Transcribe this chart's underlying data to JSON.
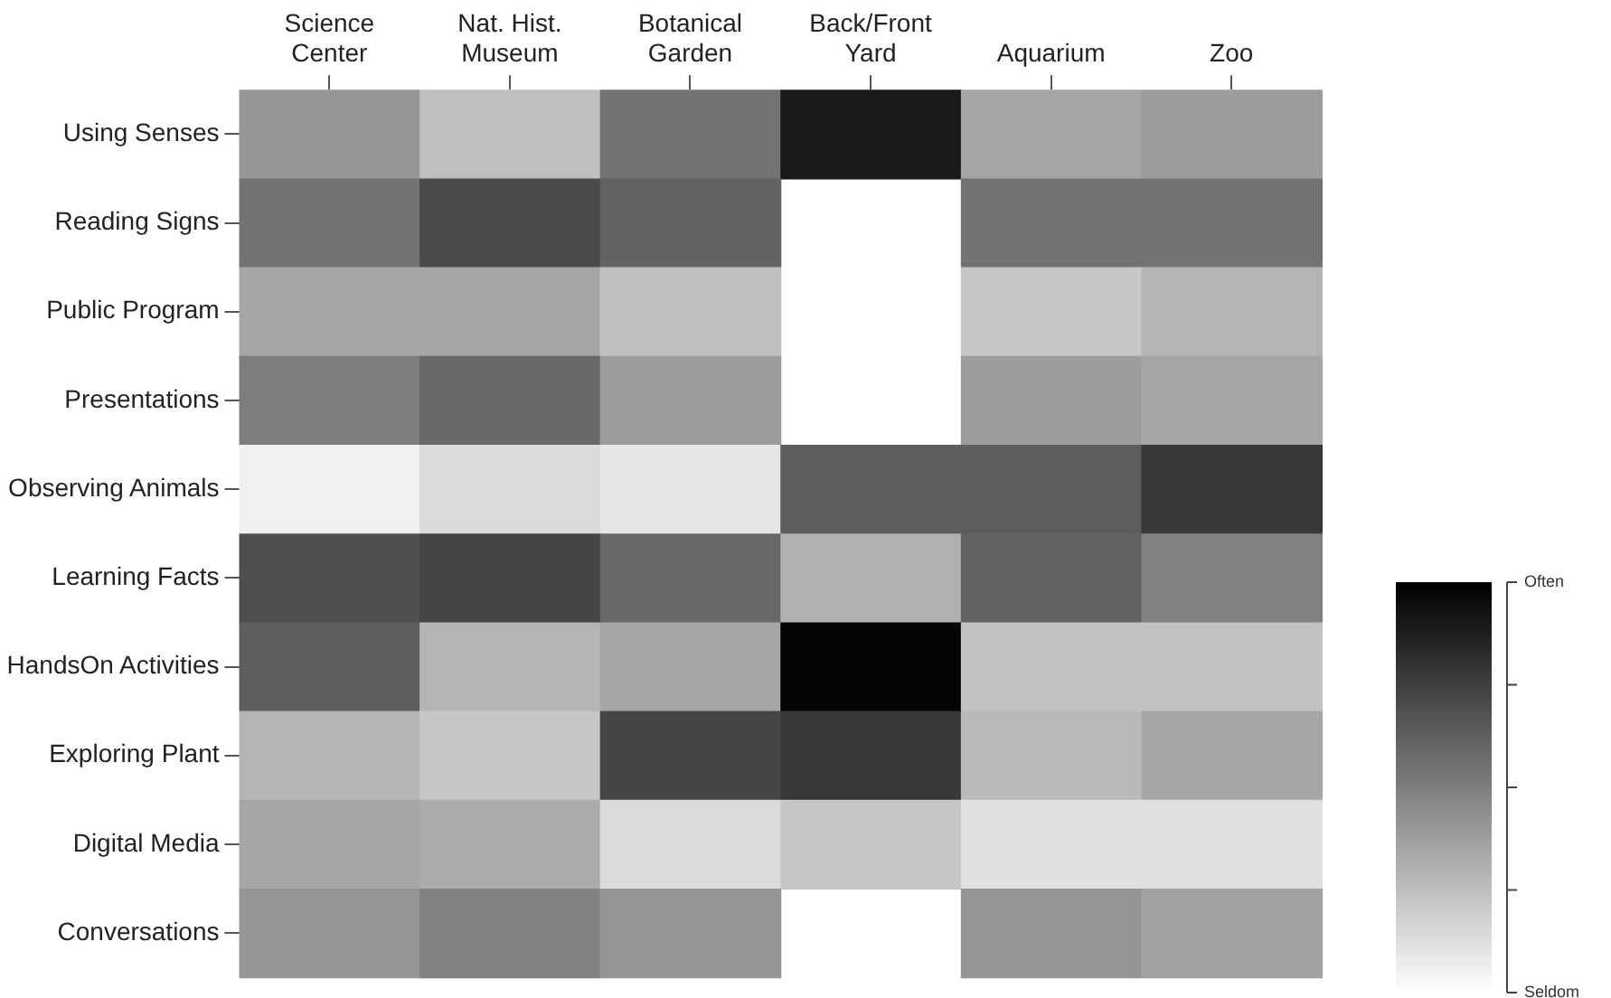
{
  "chart_data": {
    "type": "heatmap",
    "categories": [
      "Science Center",
      "Nat. Hist. Museum",
      "Botanical Garden",
      "Back/Front Yard",
      "Aquarium",
      "Zoo"
    ],
    "y_categories": [
      "Using Senses",
      "Reading Signs",
      "Public Program",
      "Presentations",
      "Observing Animals",
      "Learning Facts",
      "HandsOn Activities",
      "Exploring Plant",
      "Digital Media",
      "Conversations"
    ],
    "cells": [
      [
        0.41,
        0.25,
        0.55,
        0.9,
        0.35,
        0.39
      ],
      [
        0.55,
        0.71,
        0.61,
        null,
        0.55,
        0.55
      ],
      [
        0.35,
        0.35,
        0.25,
        null,
        0.22,
        0.29
      ],
      [
        0.51,
        0.59,
        0.39,
        null,
        0.39,
        0.35
      ],
      [
        0.06,
        0.14,
        0.1,
        0.63,
        0.63,
        0.78
      ],
      [
        0.69,
        0.73,
        0.59,
        0.31,
        0.61,
        0.49
      ],
      [
        0.63,
        0.29,
        0.35,
        0.98,
        0.24,
        0.24
      ],
      [
        0.29,
        0.22,
        0.73,
        0.78,
        0.27,
        0.35
      ],
      [
        0.35,
        0.33,
        0.14,
        0.22,
        0.12,
        0.12
      ],
      [
        0.41,
        0.49,
        0.41,
        null,
        0.41,
        0.37
      ]
    ],
    "clim": [
      0,
      1
    ],
    "cticks": [
      {
        "value": 0,
        "label": "Seldom"
      },
      {
        "value": 0.25,
        "label": null
      },
      {
        "value": 0.5,
        "label": null
      },
      {
        "value": 0.75,
        "label": null
      },
      {
        "value": 1,
        "label": "Often"
      }
    ]
  }
}
